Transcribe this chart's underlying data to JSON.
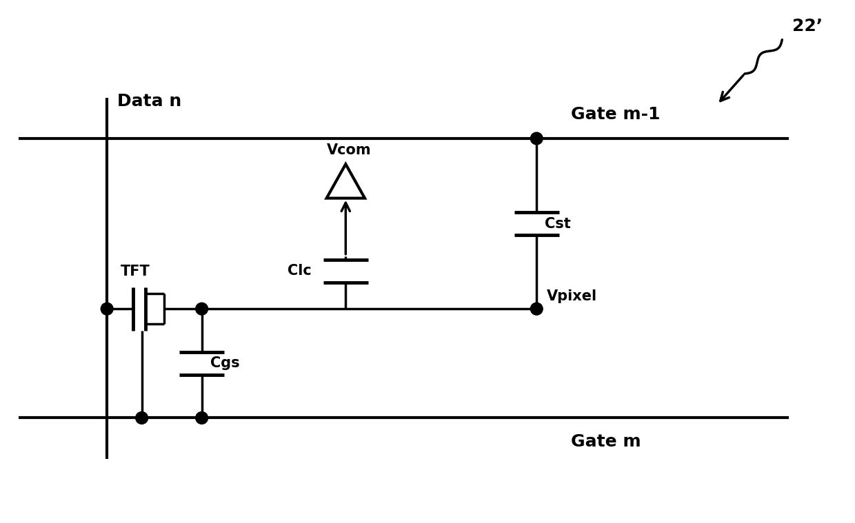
{
  "bg_color": "#ffffff",
  "line_color": "#000000",
  "line_width": 2.5,
  "fig_width": 12.4,
  "fig_height": 7.59,
  "labels": {
    "data_n": "Data n",
    "gate_m1": "Gate m-1",
    "gate_m": "Gate m",
    "vcom": "Vcom",
    "clc": "Clc",
    "cst": "Cst",
    "cgs": "Cgs",
    "tft": "TFT",
    "vpixel": "Vpixel",
    "ref": "22’"
  }
}
